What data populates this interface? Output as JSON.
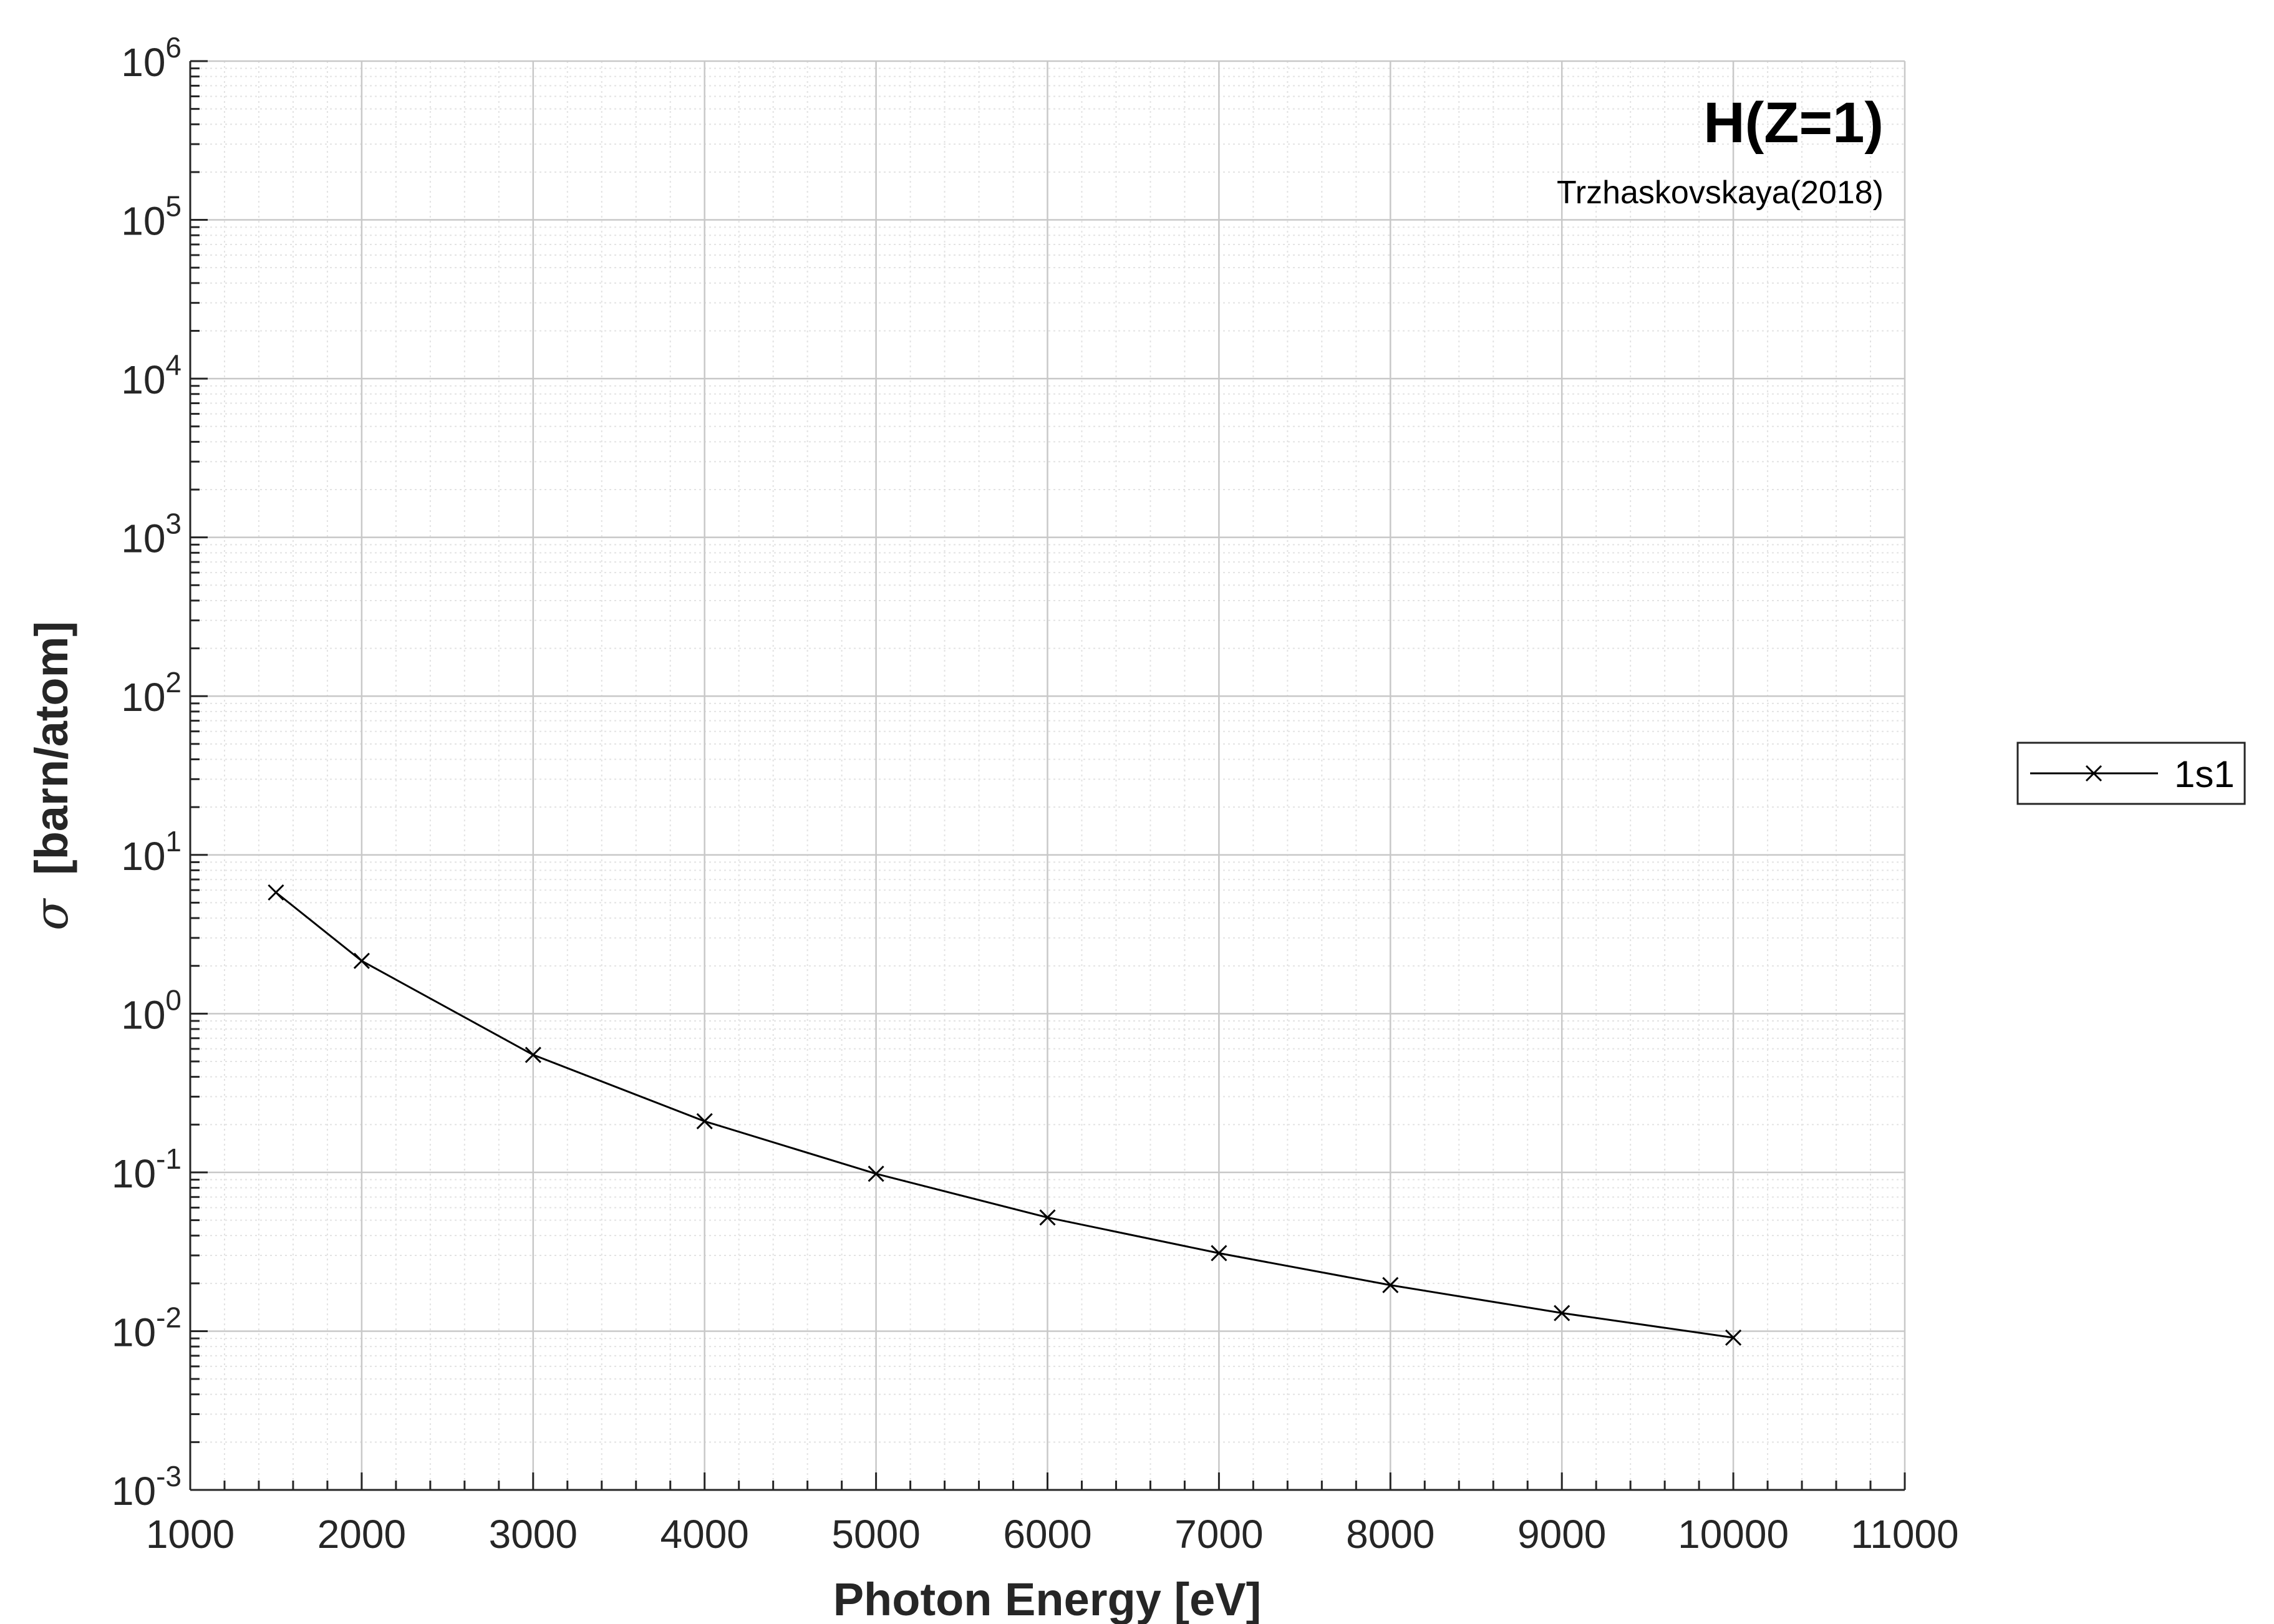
{
  "chart_data": {
    "type": "line",
    "title": "H(Z=1)",
    "subtitle": "Trzhaskovskaya(2018)",
    "xlabel": "Photon Energy [eV]",
    "ylabel_symbol": "σ",
    "ylabel": "[barn/atom]",
    "xlim": [
      1000,
      11000
    ],
    "ylim": [
      0.001,
      1000000
    ],
    "yscale": "log",
    "grid": true,
    "minor_grid": true,
    "xticks": [
      1000,
      2000,
      3000,
      4000,
      5000,
      6000,
      7000,
      8000,
      9000,
      10000,
      11000
    ],
    "xtick_labels": [
      "1000",
      "2000",
      "3000",
      "4000",
      "5000",
      "6000",
      "7000",
      "8000",
      "9000",
      "10000",
      "11000"
    ],
    "yticks": [
      {
        "base": "10",
        "exp": "-3",
        "value": 0.001
      },
      {
        "base": "10",
        "exp": "-2",
        "value": 0.01
      },
      {
        "base": "10",
        "exp": "-1",
        "value": 0.1
      },
      {
        "base": "10",
        "exp": "0",
        "value": 1
      },
      {
        "base": "10",
        "exp": "1",
        "value": 10
      },
      {
        "base": "10",
        "exp": "2",
        "value": 100
      },
      {
        "base": "10",
        "exp": "3",
        "value": 1000
      },
      {
        "base": "10",
        "exp": "4",
        "value": 10000
      },
      {
        "base": "10",
        "exp": "5",
        "value": 100000
      },
      {
        "base": "10",
        "exp": "6",
        "value": 1000000
      }
    ],
    "legend_position": "outside-right",
    "series": [
      {
        "name": "1s1",
        "marker": "x",
        "color": "#000000",
        "x": [
          1500,
          2000,
          3000,
          4000,
          5000,
          6000,
          7000,
          8000,
          9000,
          10000
        ],
        "y": [
          5.8,
          2.15,
          0.55,
          0.21,
          0.098,
          0.052,
          0.031,
          0.0195,
          0.013,
          0.0091
        ]
      }
    ]
  },
  "colors": {
    "axis": "#262626",
    "major_grid": "#c8c8c8",
    "minor_grid": "#e3e3e3",
    "series": "#000000"
  }
}
